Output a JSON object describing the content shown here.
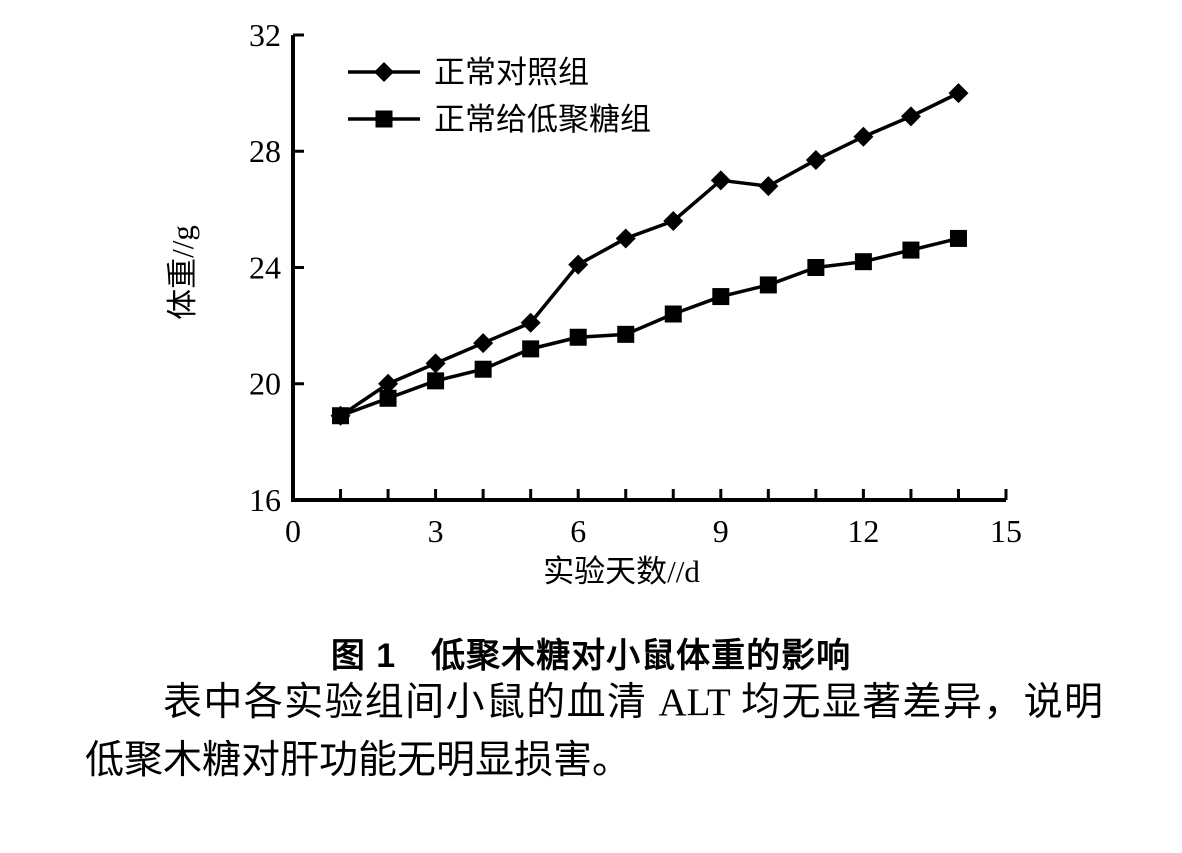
{
  "figure": {
    "caption": "图 1　低聚木糖对小鼠体重的影响"
  },
  "paragraph": {
    "text": "表中各实验组间小鼠的血清 ALT 均无显著差异，说明低聚木糖对肝功能无明显损害。"
  },
  "chart_data": {
    "type": "line",
    "title": "",
    "xlabel": "实验天数//d",
    "ylabel": "体重//g",
    "x": [
      1,
      2,
      3,
      4,
      5,
      6,
      7,
      8,
      9,
      10,
      11,
      12,
      13,
      14
    ],
    "series": [
      {
        "name": "正常对照组",
        "marker": "diamond",
        "color": "#000000",
        "values": [
          18.9,
          20.0,
          20.7,
          21.4,
          22.1,
          24.1,
          25.0,
          25.6,
          27.0,
          26.8,
          27.7,
          28.5,
          29.2,
          30.0
        ]
      },
      {
        "name": "正常给低聚糖组",
        "marker": "square",
        "color": "#000000",
        "values": [
          18.9,
          19.5,
          20.1,
          20.5,
          21.2,
          21.6,
          21.7,
          22.4,
          23.0,
          23.4,
          24.0,
          24.2,
          24.6,
          25.0
        ]
      }
    ],
    "xlim": [
      0,
      15
    ],
    "ylim": [
      16,
      32
    ],
    "xticks": [
      0,
      3,
      6,
      9,
      12,
      15
    ],
    "x_minor_tick_step": 1,
    "yticks": [
      16,
      20,
      24,
      28,
      32
    ],
    "grid": false,
    "legend_position": "upper-left",
    "axis_color": "#000000"
  }
}
